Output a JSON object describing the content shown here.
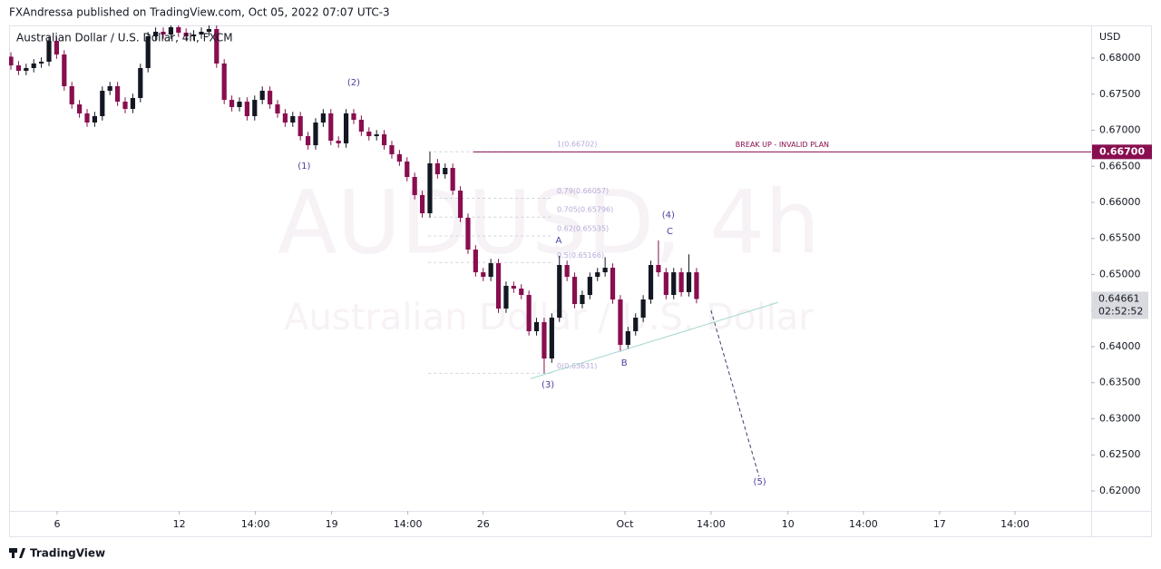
{
  "header": "FXAndressa published on TradingView.com, Oct 05, 2022 07:07 UTC-3",
  "footer": "TradingView",
  "chart_data": {
    "type": "candlestick",
    "symbol": "Australian Dollar / U.S. Dollar, 4h, FXCM",
    "watermark": "AUDUSD, 4h",
    "watermark_sub": "Australian Dollar / U.S. Dollar",
    "currency": "USD",
    "up_color": "#131722",
    "down_color": "#880e4f",
    "open": [
      0.6802,
      0.67899,
      0.67824,
      0.67862,
      0.67925,
      0.6795,
      0.68239,
      0.6805,
      0.6761,
      0.67358,
      0.67233,
      0.67107,
      0.67195,
      0.67547,
      0.6761,
      0.67396,
      0.67296,
      0.67447,
      0.67862,
      0.68302,
      0.68365,
      0.68327,
      0.68428,
      0.68352,
      0.68302,
      0.68327,
      0.68365,
      0.68403,
      0.67925,
      0.67421,
      0.67321,
      0.67396,
      0.67195,
      0.67421,
      0.67547,
      0.67358,
      0.67233,
      0.67107,
      0.67195,
      0.66918,
      0.66792,
      0.67107,
      0.67233,
      0.66855,
      0.66818,
      0.67233,
      0.67145,
      0.66981,
      0.66918,
      0.66943,
      0.66792,
      0.66667,
      0.66566,
      0.66352,
      0.66101,
      0.65849,
      0.66541,
      0.6639,
      0.66478,
      0.66163,
      0.65786,
      0.65346,
      0.65031,
      0.64968,
      0.65157,
      0.64528,
      0.64843,
      0.64805,
      0.64717,
      0.64214,
      0.6434,
      0.63836,
      0.64402,
      0.65132,
      0.64968,
      0.64591,
      0.64717,
      0.64968,
      0.65031,
      0.65094,
      0.64654,
      0.64025,
      0.64214,
      0.64402,
      0.64654,
      0.65132,
      0.65031,
      0.64717,
      0.65031,
      0.64755,
      0.65031
    ],
    "high": [
      0.6808,
      0.67959,
      0.67922,
      0.67985,
      0.6801,
      0.68299,
      0.68299,
      0.6811,
      0.6767,
      0.67418,
      0.67293,
      0.67255,
      0.67607,
      0.6767,
      0.6767,
      0.67456,
      0.67507,
      0.67922,
      0.68362,
      0.68425,
      0.68425,
      0.68488,
      0.68488,
      0.68412,
      0.68387,
      0.68425,
      0.68463,
      0.68463,
      0.67985,
      0.67481,
      0.67456,
      0.67456,
      0.67481,
      0.67607,
      0.67607,
      0.67418,
      0.67293,
      0.67255,
      0.67255,
      0.66978,
      0.67167,
      0.67293,
      0.67293,
      0.66915,
      0.67293,
      0.67293,
      0.67205,
      0.67041,
      0.67003,
      0.67003,
      0.66852,
      0.66727,
      0.66626,
      0.66412,
      0.66161,
      0.66702,
      0.66601,
      0.66538,
      0.66538,
      0.66223,
      0.65846,
      0.65406,
      0.65091,
      0.65217,
      0.65217,
      0.64903,
      0.64903,
      0.64865,
      0.64777,
      0.644,
      0.644,
      0.64462,
      0.6526,
      0.65192,
      0.65028,
      0.64777,
      0.65028,
      0.65091,
      0.6524,
      0.65154,
      0.64714,
      0.64274,
      0.64462,
      0.64714,
      0.65192,
      0.65472,
      0.65091,
      0.65091,
      0.65091,
      0.6528,
      0.65091
    ],
    "low": [
      0.67839,
      0.67764,
      0.67764,
      0.67802,
      0.67865,
      0.6789,
      0.6799,
      0.6755,
      0.67298,
      0.67173,
      0.67047,
      0.67047,
      0.67135,
      0.67487,
      0.67336,
      0.67236,
      0.67236,
      0.67387,
      0.67802,
      0.68242,
      0.68267,
      0.68267,
      0.68292,
      0.68242,
      0.68242,
      0.68267,
      0.68305,
      0.67865,
      0.67361,
      0.67261,
      0.67261,
      0.67135,
      0.67135,
      0.67361,
      0.67298,
      0.67173,
      0.67047,
      0.67047,
      0.66858,
      0.66732,
      0.66732,
      0.67047,
      0.66795,
      0.66758,
      0.66758,
      0.67085,
      0.66921,
      0.66858,
      0.66858,
      0.66732,
      0.66607,
      0.66506,
      0.66292,
      0.66041,
      0.65789,
      0.65789,
      0.6633,
      0.6633,
      0.66103,
      0.65726,
      0.65286,
      0.64971,
      0.64908,
      0.64908,
      0.64468,
      0.64468,
      0.64745,
      0.64657,
      0.64154,
      0.64154,
      0.63631,
      0.63776,
      0.64342,
      0.64908,
      0.64531,
      0.64531,
      0.64657,
      0.64908,
      0.64971,
      0.64594,
      0.6393,
      0.63965,
      0.64154,
      0.64342,
      0.64594,
      0.64971,
      0.64657,
      0.64657,
      0.64695,
      0.64695,
      0.64601
    ],
    "close": [
      0.67899,
      0.67824,
      0.67862,
      0.67925,
      0.6795,
      0.68239,
      0.6805,
      0.6761,
      0.67358,
      0.67233,
      0.67107,
      0.67195,
      0.67547,
      0.6761,
      0.67396,
      0.67296,
      0.67447,
      0.67862,
      0.68302,
      0.68365,
      0.68327,
      0.68428,
      0.68352,
      0.68302,
      0.68327,
      0.68365,
      0.68403,
      0.67925,
      0.67421,
      0.67321,
      0.67396,
      0.67195,
      0.67421,
      0.67547,
      0.67358,
      0.67233,
      0.67107,
      0.67195,
      0.66918,
      0.66792,
      0.67107,
      0.67233,
      0.66855,
      0.66818,
      0.67233,
      0.67145,
      0.66981,
      0.66918,
      0.66943,
      0.66792,
      0.66667,
      0.66566,
      0.66352,
      0.66101,
      0.65849,
      0.66541,
      0.6639,
      0.66478,
      0.66163,
      0.65786,
      0.65346,
      0.65031,
      0.64968,
      0.65157,
      0.64528,
      0.64843,
      0.64805,
      0.64717,
      0.64214,
      0.6434,
      0.63836,
      0.64402,
      0.65132,
      0.64968,
      0.64591,
      0.64717,
      0.64968,
      0.65031,
      0.65094,
      0.64654,
      0.64025,
      0.64214,
      0.64402,
      0.64654,
      0.65132,
      0.65031,
      0.64717,
      0.65031,
      0.64755,
      0.65031,
      0.64661
    ],
    "xlim": [
      -0.24,
      141.8
    ],
    "xticks": [
      {
        "value": 6.07,
        "label": "6"
      },
      {
        "value": 22.1,
        "label": "12"
      },
      {
        "value": 32.1,
        "label": "14:00"
      },
      {
        "value": 42.1,
        "label": "19"
      },
      {
        "value": 52.1,
        "label": "14:00"
      },
      {
        "value": 62,
        "label": "26"
      },
      {
        "value": 80.6,
        "label": "Oct"
      },
      {
        "value": 91.9,
        "label": "14:00"
      },
      {
        "value": 102,
        "label": "10"
      },
      {
        "value": 111.9,
        "label": "14:00"
      },
      {
        "value": 121.9,
        "label": "17"
      },
      {
        "value": 131.8,
        "label": "14:00"
      }
    ],
    "ylim": [
      0.61723,
      0.68453
    ],
    "yticks": [
      {
        "value": 0.62,
        "label": "0.62000"
      },
      {
        "value": 0.625,
        "label": "0.62500"
      },
      {
        "value": 0.63,
        "label": "0.63000"
      },
      {
        "value": 0.635,
        "label": "0.63500"
      },
      {
        "value": 0.64,
        "label": "0.64000"
      },
      {
        "value": 0.645,
        "label": "0.64500"
      },
      {
        "value": 0.65,
        "label": "0.65000"
      },
      {
        "value": 0.655,
        "label": "0.65500"
      },
      {
        "value": 0.66,
        "label": "0.66000"
      },
      {
        "value": 0.665,
        "label": "0.66500"
      },
      {
        "value": 0.67,
        "label": "0.67000"
      },
      {
        "value": 0.675,
        "label": "0.67500"
      },
      {
        "value": 0.68,
        "label": "0.68000"
      }
    ],
    "price_line": {
      "value": 0.667,
      "label": "0.66700",
      "text": "BREAK UP - INVALID PLAN",
      "x_start": 60.7,
      "color": "#880e4f"
    },
    "last_price": {
      "value": 0.64661,
      "label": "0.64661",
      "countdown": "02:52:52"
    },
    "fib_range": [
      54.8,
      71.2
    ],
    "fib_levels": [
      {
        "value": 0.66702,
        "label": "1(0.66702)"
      },
      {
        "value": 0.66057,
        "label": "0.79(0.66057)"
      },
      {
        "value": 0.65796,
        "label": "0.705(0.65796)"
      },
      {
        "value": 0.65535,
        "label": "0.62(0.65535)"
      },
      {
        "value": 0.65166,
        "label": "0.5(0.65166)"
      },
      {
        "value": 0.63631,
        "label": "0(0.63631)"
      }
    ],
    "trendline": {
      "x": [
        68.2,
        100.7
      ],
      "y": [
        0.63556,
        0.64613
      ],
      "color": "#a5d6cf"
    },
    "projection": {
      "x": [
        91.9,
        98.2
      ],
      "y": [
        0.64503,
        0.62201
      ],
      "color": "#3d3a6b"
    },
    "wave_labels": [
      {
        "label": "(1)",
        "x": 38.5,
        "y": 0.66503
      },
      {
        "label": "(2)",
        "x": 45,
        "y": 0.6766
      },
      {
        "label": "(3)",
        "x": 70.5,
        "y": 0.63472
      },
      {
        "label": "(4)",
        "x": 86.3,
        "y": 0.65824
      },
      {
        "label": "(5)",
        "x": 98.3,
        "y": 0.62126
      },
      {
        "label": "A",
        "x": 71.9,
        "y": 0.65472
      },
      {
        "label": "B",
        "x": 80.5,
        "y": 0.63774
      },
      {
        "label": "C",
        "x": 86.5,
        "y": 0.65597
      }
    ]
  }
}
